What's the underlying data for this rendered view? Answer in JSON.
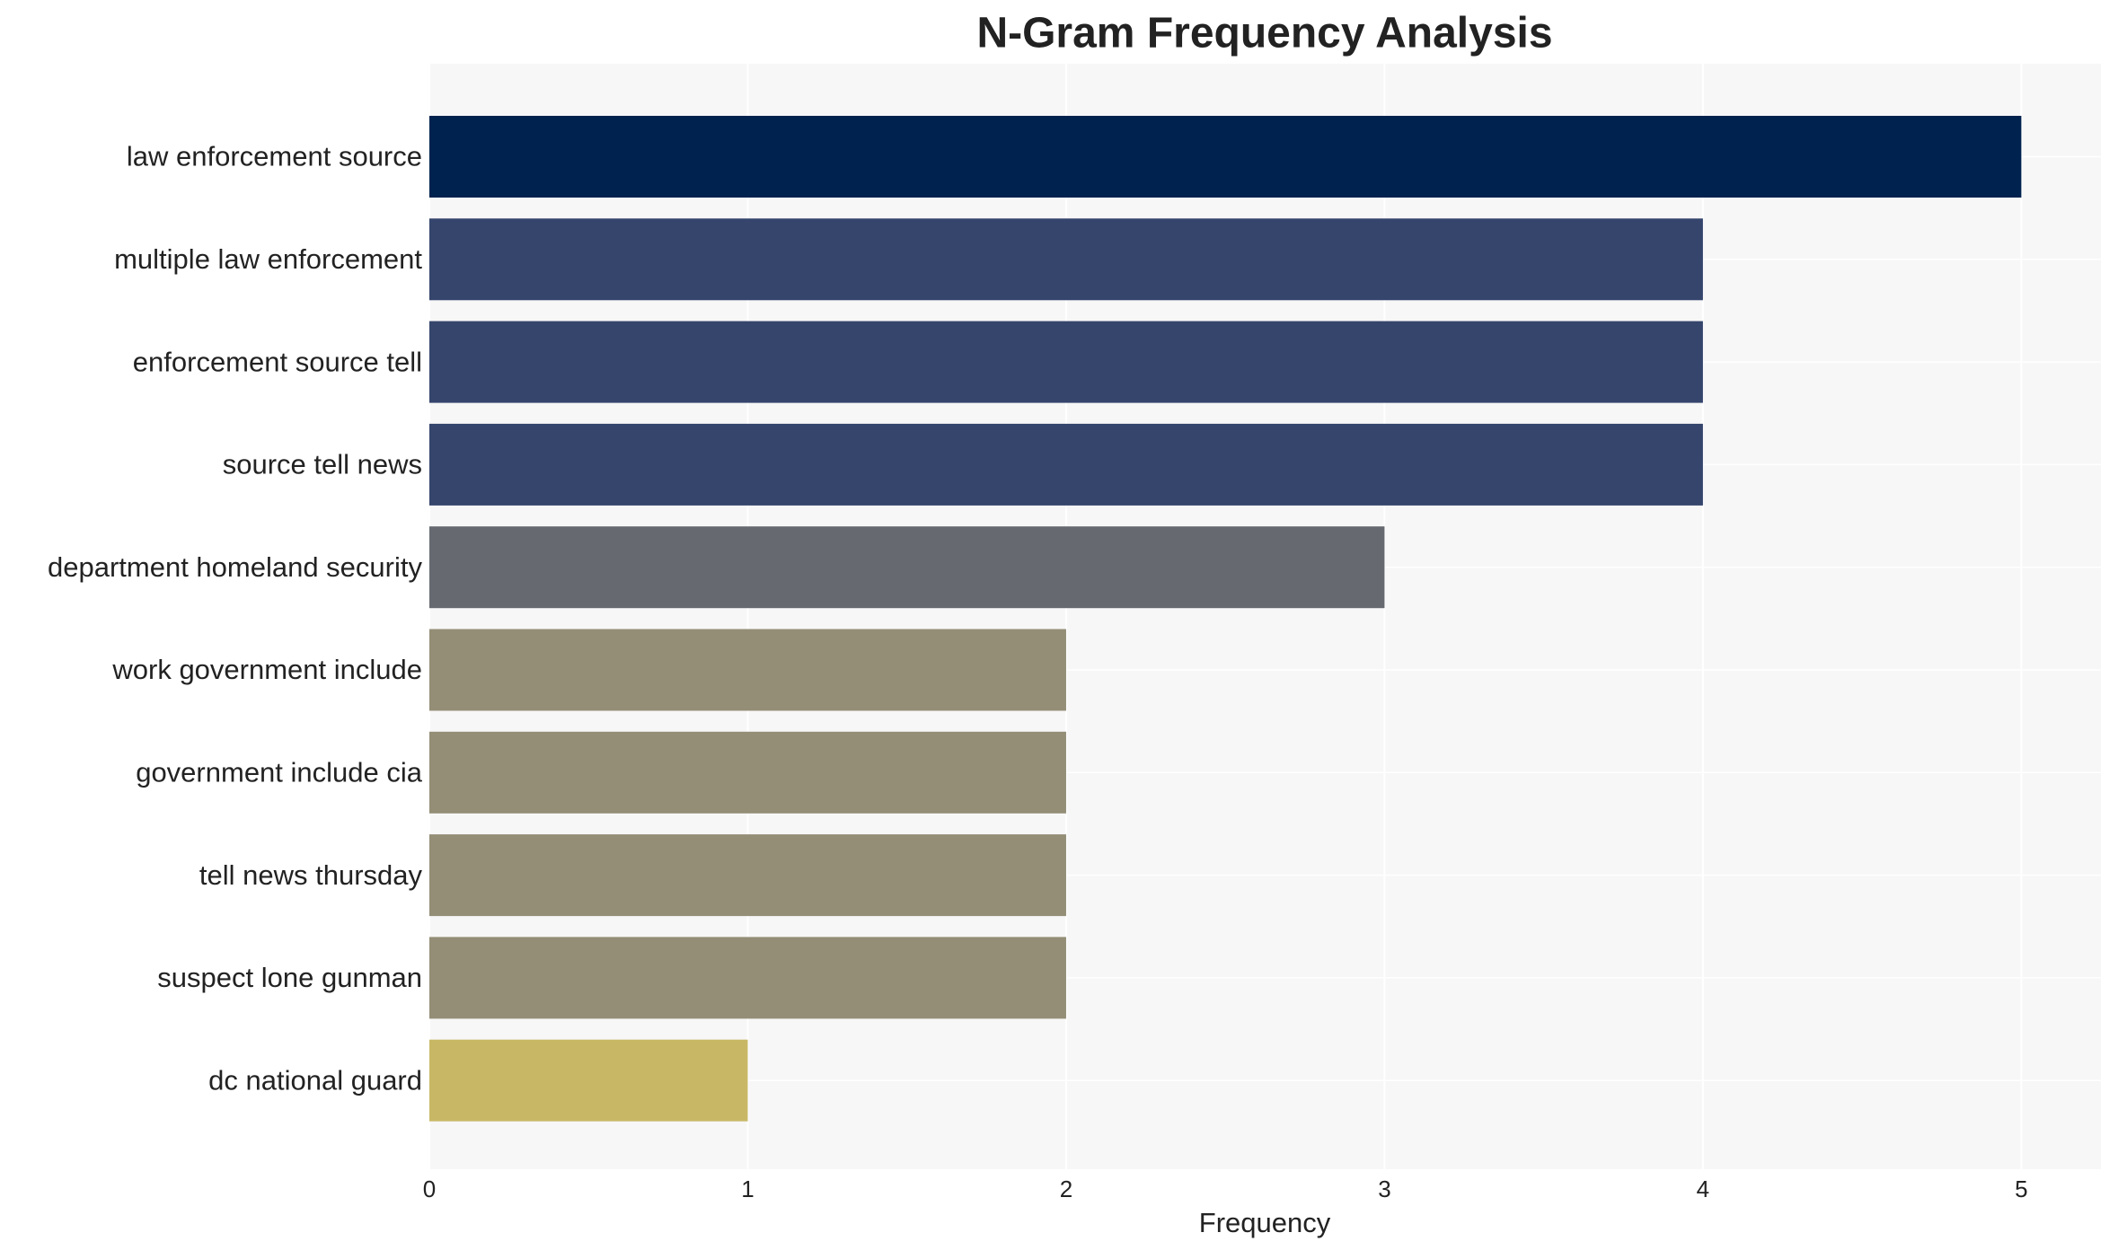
{
  "chart_data": {
    "type": "bar",
    "orientation": "horizontal",
    "title": "N-Gram Frequency Analysis",
    "x_label": "Frequency",
    "categories": [
      "law enforcement source",
      "multiple law enforcement",
      "enforcement source tell",
      "source tell news",
      "department homeland security",
      "work government include",
      "government include cia",
      "tell news thursday",
      "suspect lone gunman",
      "dc national guard"
    ],
    "values": [
      5,
      4,
      4,
      4,
      3,
      2,
      2,
      2,
      2,
      1
    ],
    "colors": [
      "#00224e",
      "#35456c",
      "#35456c",
      "#35456c",
      "#666970",
      "#948e77",
      "#948e77",
      "#948e77",
      "#948e77",
      "#c8b866"
    ],
    "xlim": [
      0,
      5.25
    ],
    "xticks": [
      0,
      1,
      2,
      3,
      4,
      5
    ],
    "grid": true
  }
}
